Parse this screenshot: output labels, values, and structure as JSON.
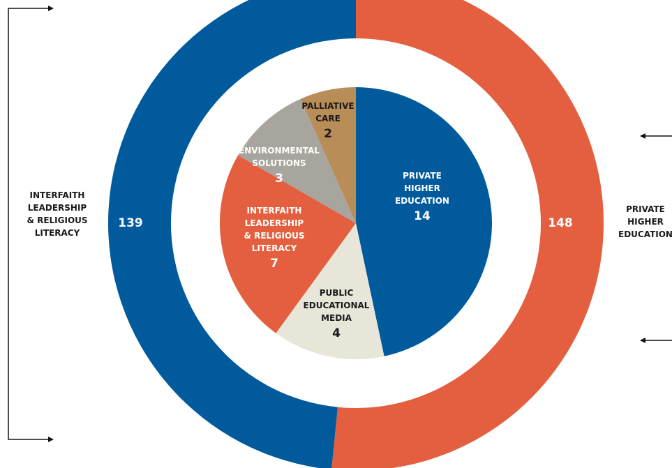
{
  "chart_data": [
    {
      "type": "donut",
      "categories": [
        "PRIVATE HIGHER EDUCATION",
        "INTERFAITH LEADERSHIP & RELIGIOUS LITERACY"
      ],
      "values": [
        148,
        139
      ],
      "colors": [
        "#e35f3f",
        "#005a9c"
      ]
    },
    {
      "type": "pie",
      "categories": [
        "PRIVATE HIGHER EDUCATION",
        "PUBLIC EDUCATIONAL MEDIA",
        "INTERFAITH LEADERSHIP & RELIGIOUS LITERACY",
        "ENVIRONMENTAL SOLUTIONS",
        "PALLIATIVE CARE"
      ],
      "values": [
        14,
        4,
        7,
        3,
        2
      ],
      "colors": [
        "#005a9c",
        "#e8e6d9",
        "#e35f3f",
        "#a8a49e",
        "#b98d58"
      ]
    }
  ]
}
